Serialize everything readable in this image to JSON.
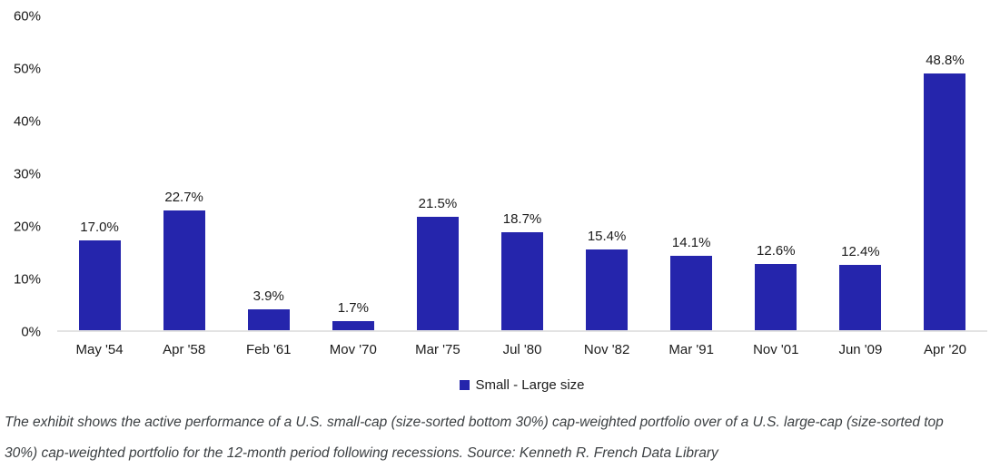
{
  "chart_data": {
    "type": "bar",
    "categories": [
      "May '54",
      "Apr '58",
      "Feb '61",
      "Mov '70",
      "Mar '75",
      "Jul '80",
      "Nov '82",
      "Mar '91",
      "Nov '01",
      "Jun '09",
      "Apr '20"
    ],
    "values": [
      17.0,
      22.7,
      3.9,
      1.7,
      21.5,
      18.7,
      15.4,
      14.1,
      12.6,
      12.4,
      48.8
    ],
    "value_labels": [
      "17.0%",
      "22.7%",
      "3.9%",
      "1.7%",
      "21.5%",
      "18.7%",
      "15.4%",
      "14.1%",
      "12.6%",
      "12.4%",
      "48.8%"
    ],
    "y_ticks": [
      "60%",
      "50%",
      "40%",
      "30%",
      "20%",
      "10%",
      "0%"
    ],
    "ylim": [
      0,
      60
    ],
    "grid": false,
    "bar_color": "#2525ac",
    "legend_position": "bottom",
    "legend": [
      {
        "label": "Small - Large size",
        "color": "#2525ac"
      }
    ],
    "title": "",
    "xlabel": "",
    "ylabel": ""
  },
  "caption": {
    "line1": "The exhibit shows the active performance of a U.S. small-cap (size-sorted bottom 30%) cap-weighted portfolio over of a U.S. large-cap (size-sorted top",
    "line2": "30%) cap-weighted portfolio for the 12-month period following recessions. Source: Kenneth R. French Data Library"
  },
  "colors": {
    "bar": "#2525ac",
    "axis_line": "#e3e3e3",
    "axis_text": "#1a1a1a",
    "caption_text": "#3c4043",
    "background": "#ffffff"
  }
}
